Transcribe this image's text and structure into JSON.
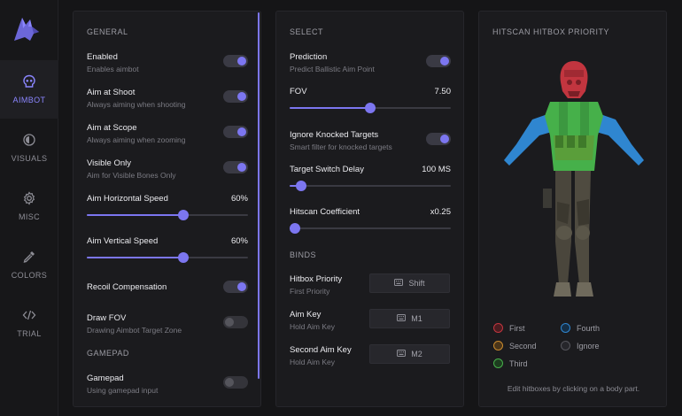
{
  "sidebar": {
    "items": [
      {
        "label": "AIMBOT",
        "icon": "skull-icon",
        "active": true
      },
      {
        "label": "VISUALS",
        "icon": "eye-icon"
      },
      {
        "label": "MISC",
        "icon": "gear-icon"
      },
      {
        "label": "COLORS",
        "icon": "eyedropper-icon"
      },
      {
        "label": "TRIAL",
        "icon": "code-icon"
      }
    ]
  },
  "general": {
    "title": "GENERAL",
    "enabled": {
      "title": "Enabled",
      "sub": "Enables aimbot",
      "on": true
    },
    "aim_shoot": {
      "title": "Aim at Shoot",
      "sub": "Always aiming when shooting",
      "on": true
    },
    "aim_scope": {
      "title": "Aim at Scope",
      "sub": "Always aiming when zooming",
      "on": true
    },
    "visible_only": {
      "title": "Visible Only",
      "sub": "Aim for Visible Bones Only",
      "on": true
    },
    "h_speed": {
      "title": "Aim Horizontal Speed",
      "value": "60%",
      "fraction": 0.6
    },
    "v_speed": {
      "title": "Aim Vertical Speed",
      "value": "60%",
      "fraction": 0.6
    },
    "recoil": {
      "title": "Recoil Compensation",
      "on": true
    },
    "draw_fov": {
      "title": "Draw FOV",
      "sub": "Drawing Aimbot Target Zone",
      "on": false
    },
    "gamepad_title": "GAMEPAD",
    "gamepad": {
      "title": "Gamepad",
      "sub": "Using gamepad input",
      "on": false
    }
  },
  "select": {
    "title": "SELECT",
    "prediction": {
      "title": "Prediction",
      "sub": "Predict Ballistic Aim Point",
      "on": true
    },
    "fov": {
      "title": "FOV",
      "value": "7.50",
      "fraction": 0.5
    },
    "ignore_knocked": {
      "title": "Ignore Knocked Targets",
      "sub": "Smart filter for knocked targets",
      "on": true
    },
    "switch_delay": {
      "title": "Target Switch Delay",
      "value": "100 MS",
      "fraction": 0.07
    },
    "hitscan": {
      "title": "Hitscan Coefficient",
      "value": "x0.25",
      "fraction": 0.0
    },
    "binds_title": "BINDS",
    "binds": [
      {
        "title": "Hitbox Priority",
        "sub": "First Priority",
        "key": "Shift"
      },
      {
        "title": "Aim Key",
        "sub": "Hold Aim Key",
        "key": "M1"
      },
      {
        "title": "Second Aim Key",
        "sub": "Hold Aim Key",
        "key": "M2"
      }
    ]
  },
  "hitbox": {
    "title": "HITSCAN HITBOX PRIORITY",
    "legend": [
      {
        "label": "First",
        "color": "#c2353f"
      },
      {
        "label": "Second",
        "color": "#c98a2e"
      },
      {
        "label": "Third",
        "color": "#46b04a"
      },
      {
        "label": "Fourth",
        "color": "#2f86d0"
      },
      {
        "label": "Ignore",
        "color": "#55555c"
      }
    ],
    "hint": "Edit hitboxes by clicking on a body part."
  }
}
